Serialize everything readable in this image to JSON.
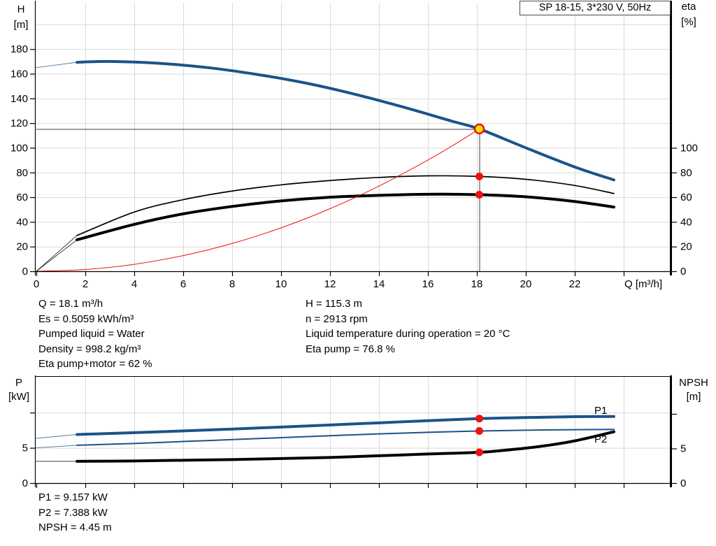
{
  "header": {
    "title_box": "SP 18-15, 3*230 V, 50Hz"
  },
  "info_blocks": {
    "left": [
      "Q = 18.1 m³/h",
      "Es = 0.5059 kWh/m³",
      "Pumped liquid = Water",
      "Density = 998.2 kg/m³",
      "Eta pump+motor = 62 %"
    ],
    "right": [
      "H = 115.3 m",
      "n = 2913 rpm",
      "Liquid temperature during operation = 20 °C",
      "Eta pump = 76.8 %"
    ],
    "bottom": [
      "P1 = 9.157 kW",
      "P2 = 7.388 kW",
      "NPSH = 4.45 m"
    ]
  },
  "colors": {
    "curve_blue": "#1A5488",
    "label_blue": "#1F5FA6",
    "red": "#F01010",
    "yellow": "#FFE60A",
    "grid": "#D9D9D9",
    "guide": "#3F3F3F",
    "axis": "#000000"
  },
  "chart_data": [
    {
      "type": "line",
      "title": "SP 18-15, 3*230 V, 50Hz",
      "x_axis": {
        "label": "Q [m³/h]",
        "min": 0,
        "max": 26,
        "tick_values": [
          0,
          2,
          4,
          6,
          8,
          10,
          12,
          14,
          16,
          18,
          20,
          22,
          24
        ],
        "label_values": [
          0,
          2,
          4,
          6,
          8,
          10,
          12,
          14,
          16,
          18,
          20,
          22
        ],
        "grid_values": [
          2,
          4,
          6,
          8,
          10,
          12,
          14,
          16,
          18,
          20,
          22,
          24
        ]
      },
      "y_left": {
        "label": "H [m]",
        "min": 0,
        "max": 215,
        "tick_values": [
          0,
          20,
          40,
          60,
          80,
          100,
          120,
          140,
          160,
          180
        ],
        "label_values": [
          0,
          20,
          40,
          60,
          80,
          100,
          120,
          140,
          160,
          180
        ],
        "grid_values": [
          20,
          40,
          60,
          80,
          100,
          120,
          140,
          160,
          180,
          200
        ]
      },
      "y_right": {
        "label": "eta [%]",
        "min": 0,
        "max": 100,
        "tick_values": [
          0,
          20,
          40,
          60,
          80,
          100
        ],
        "label_values": [
          0,
          20,
          40,
          60,
          80,
          100
        ]
      },
      "series": [
        {
          "name": "H curve",
          "color": "curve_blue",
          "width": 4,
          "axis": "left",
          "thin_until": 1.66,
          "points": [
            [
              0,
              165
            ],
            [
              1.66,
              169.3
            ],
            [
              3,
              170
            ],
            [
              5,
              168.5
            ],
            [
              7,
              165
            ],
            [
              9,
              159.5
            ],
            [
              11,
              152.5
            ],
            [
              13,
              143.5
            ],
            [
              15,
              133
            ],
            [
              17,
              121.5
            ],
            [
              18.1,
              115.3
            ],
            [
              20,
              100
            ],
            [
              22,
              84.5
            ],
            [
              23.6,
              74
            ]
          ]
        },
        {
          "name": "eta pump",
          "color": "axis",
          "width": 1.7,
          "axis": "right",
          "thin_until": 1.66,
          "points": [
            [
              0,
              0
            ],
            [
              1.66,
              29
            ],
            [
              4,
              48
            ],
            [
              6,
              58
            ],
            [
              8,
              65
            ],
            [
              10,
              70
            ],
            [
              12,
              73.5
            ],
            [
              14,
              76
            ],
            [
              16,
              77.3
            ],
            [
              18.1,
              76.8
            ],
            [
              20,
              74.5
            ],
            [
              22,
              69.5
            ],
            [
              23.6,
              63
            ]
          ]
        },
        {
          "name": "eta pump motor",
          "color": "axis",
          "width": 4,
          "axis": "right",
          "thin_until": 1.66,
          "points": [
            [
              0,
              0
            ],
            [
              1.66,
              25.5
            ],
            [
              4,
              38
            ],
            [
              6,
              46.5
            ],
            [
              8,
              52.5
            ],
            [
              10,
              57
            ],
            [
              12,
              60
            ],
            [
              14,
              61.5
            ],
            [
              16,
              62.4
            ],
            [
              18.1,
              62
            ],
            [
              20,
              60.3
            ],
            [
              22,
              56.5
            ],
            [
              23.6,
              52
            ]
          ]
        },
        {
          "name": "system curve",
          "color": "red",
          "width": 1,
          "axis": "left",
          "points": [
            [
              0,
              0
            ],
            [
              2,
              1.4
            ],
            [
              4,
              5.6
            ],
            [
              6,
              12.7
            ],
            [
              8,
              22.5
            ],
            [
              10,
              35.2
            ],
            [
              12,
              50.7
            ],
            [
              14,
              69
            ],
            [
              16,
              90.1
            ],
            [
              17,
              101.7
            ],
            [
              18.1,
              115.3
            ]
          ]
        }
      ],
      "guides": [
        {
          "type": "h",
          "at": 115.3,
          "from": 0,
          "to": 18.1
        },
        {
          "type": "v",
          "at": 18.1,
          "from": 115.3,
          "to": 0
        }
      ],
      "markers": [
        {
          "q": 18.1,
          "v": 115.3,
          "axis": "left",
          "style": "duty"
        },
        {
          "q": 18.1,
          "v": 76.8,
          "axis": "right",
          "style": "dot"
        },
        {
          "q": 18.1,
          "v": 62,
          "axis": "right",
          "style": "dot"
        }
      ],
      "annotations": []
    },
    {
      "type": "line",
      "x_axis": {
        "min": 0,
        "max": 26,
        "tick_values": [
          0,
          2,
          4,
          6,
          8,
          10,
          12,
          14,
          16,
          18,
          20,
          22,
          24
        ],
        "label_values": [],
        "grid_values": [
          2,
          4,
          6,
          8,
          10,
          12,
          14,
          16,
          18,
          20,
          22,
          24
        ]
      },
      "y_left": {
        "label": "P [kW]",
        "min": 0,
        "max": 15.2,
        "tick_values": [
          0,
          5,
          10
        ],
        "label_values": [
          0,
          5
        ],
        "grid_values": [
          5,
          10
        ]
      },
      "y_right": {
        "label": "NPSH [m]",
        "min": 0,
        "max": 15.5,
        "tick_values": [
          0,
          5,
          10
        ],
        "label_values": [
          0,
          5
        ]
      },
      "series": [
        {
          "name": "P1 curve",
          "color": "curve_blue",
          "width": 4,
          "axis": "left",
          "thin_until": 1.66,
          "points": [
            [
              0,
              6.35
            ],
            [
              1.66,
              6.9
            ],
            [
              4,
              7.15
            ],
            [
              6,
              7.4
            ],
            [
              8,
              7.67
            ],
            [
              10,
              7.95
            ],
            [
              12,
              8.25
            ],
            [
              14,
              8.55
            ],
            [
              16,
              8.85
            ],
            [
              18.1,
              9.157
            ],
            [
              20,
              9.3
            ],
            [
              22,
              9.42
            ],
            [
              23.6,
              9.45
            ]
          ]
        },
        {
          "name": "P2 curve",
          "color": "curve_blue",
          "width": 2,
          "axis": "left",
          "thin_until": 1.66,
          "points": [
            [
              0,
              5.0
            ],
            [
              1.66,
              5.37
            ],
            [
              4,
              5.62
            ],
            [
              6,
              5.9
            ],
            [
              8,
              6.17
            ],
            [
              10,
              6.45
            ],
            [
              12,
              6.72
            ],
            [
              14,
              6.98
            ],
            [
              16,
              7.2
            ],
            [
              18.1,
              7.388
            ],
            [
              20,
              7.5
            ],
            [
              22,
              7.58
            ],
            [
              23.6,
              7.62
            ]
          ]
        },
        {
          "name": "NPSH curve",
          "color": "axis",
          "width": 4,
          "axis": "right",
          "thin_until": 1.66,
          "points": [
            [
              0,
              3.15
            ],
            [
              1.66,
              3.15
            ],
            [
              4,
              3.2
            ],
            [
              6,
              3.3
            ],
            [
              8,
              3.4
            ],
            [
              10,
              3.55
            ],
            [
              12,
              3.7
            ],
            [
              14,
              3.95
            ],
            [
              16,
              4.2
            ],
            [
              18.1,
              4.45
            ],
            [
              19,
              4.7
            ],
            [
              20,
              5.05
            ],
            [
              21,
              5.5
            ],
            [
              22,
              6.1
            ],
            [
              23,
              6.9
            ],
            [
              23.6,
              7.42
            ]
          ]
        }
      ],
      "guides": [],
      "markers": [
        {
          "q": 18.1,
          "v": 9.157,
          "axis": "left",
          "style": "dot"
        },
        {
          "q": 18.1,
          "v": 7.388,
          "axis": "left",
          "style": "dot"
        },
        {
          "q": 18.1,
          "v": 4.45,
          "axis": "right",
          "style": "dot"
        }
      ],
      "annotations": [
        {
          "text": "P1",
          "q": 22.8,
          "v": 9.82,
          "axis": "left"
        },
        {
          "text": "P2",
          "q": 22.8,
          "v": 5.75,
          "axis": "left"
        }
      ]
    }
  ]
}
